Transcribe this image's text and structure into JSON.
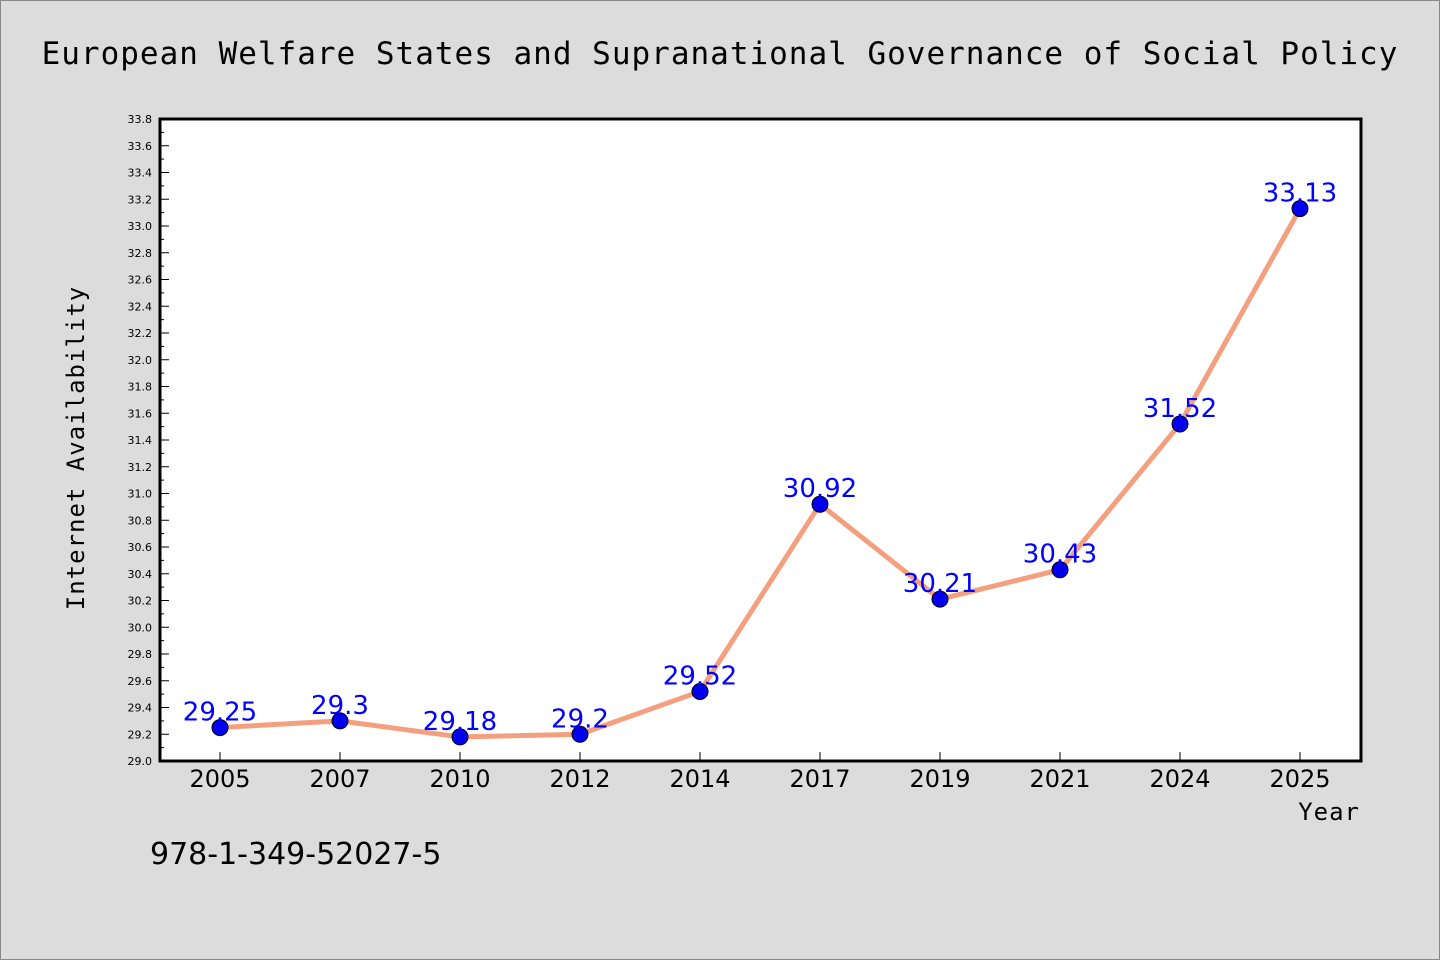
{
  "chart_data": {
    "type": "line",
    "title": "European Welfare States and Supranational Governance of Social Policy",
    "xlabel": "Year",
    "ylabel": "Internet Availability",
    "categories": [
      "2005",
      "2007",
      "2010",
      "2012",
      "2014",
      "2017",
      "2019",
      "2021",
      "2024",
      "2025"
    ],
    "series": [
      {
        "values": [
          29.25,
          29.3,
          29.18,
          29.2,
          29.52,
          30.92,
          30.21,
          30.43,
          31.52,
          33.13
        ],
        "data_labels": [
          "29.25",
          "29.3",
          "29.18",
          "29.2",
          "29.52",
          "30.92",
          "30.21",
          "30.43",
          "31.52",
          "33.13"
        ]
      }
    ],
    "ylim": [
      29.0,
      33.8
    ],
    "yticks": [
      "29.0",
      "29.2",
      "29.4",
      "29.6",
      "29.8",
      "30.0",
      "30.2",
      "30.4",
      "30.6",
      "30.8",
      "31.0",
      "31.2",
      "31.4",
      "31.6",
      "31.8",
      "32.0",
      "32.2",
      "32.4",
      "32.6",
      "32.8",
      "33.0",
      "33.2",
      "33.4",
      "33.6",
      "33.8"
    ],
    "grid": false,
    "legend": "none",
    "line_color": "#f4a07f",
    "marker_color": "#0000ee",
    "label_color": "#0000ff",
    "background": "#dcdcdc",
    "plot_background": "#ffffff"
  },
  "footnote": "978-1-349-52027-5"
}
